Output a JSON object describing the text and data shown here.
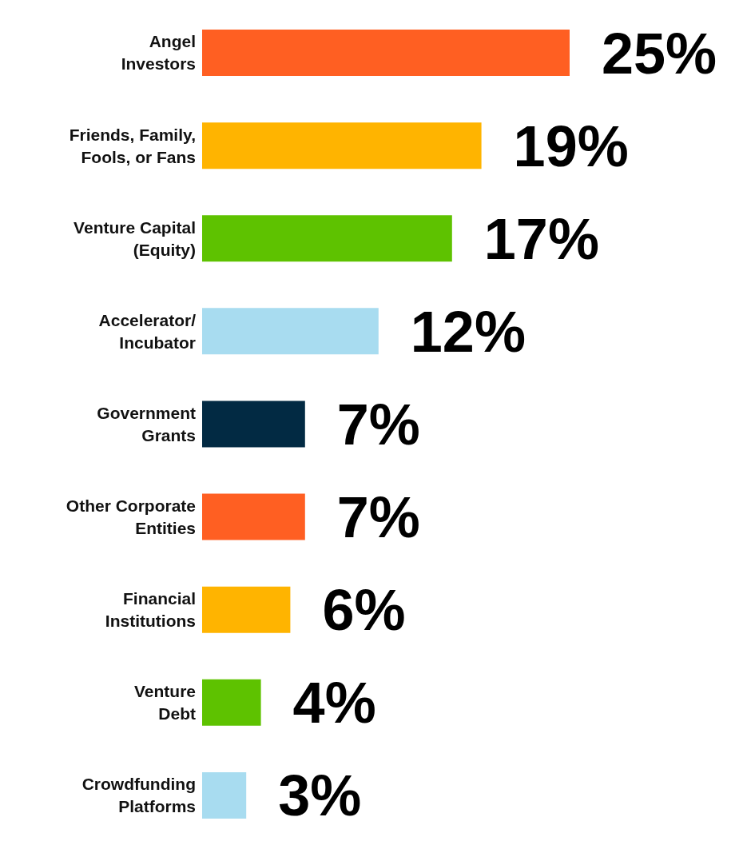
{
  "chart_data": {
    "type": "bar",
    "orientation": "horizontal",
    "tick_labels": "y",
    "categories": [
      "Angel Investors",
      "Friends, Family, Fools, or Fans",
      "Venture Capital (Equity)",
      "Accelerator/ Incubator",
      "Government Grants",
      "Other Corporate Entities",
      "Financial Institutions",
      "Venture Debt",
      "Crowdfunding Platforms"
    ],
    "values": [
      25,
      19,
      17,
      12,
      7,
      7,
      6,
      4,
      3
    ],
    "colors": [
      "#ff5f22",
      "#ffb400",
      "#5ec200",
      "#a8dcf0",
      "#022a43",
      "#ff5f22",
      "#ffb400",
      "#5ec200",
      "#a8dcf0"
    ],
    "value_labels": [
      "25%",
      "19%",
      "17%",
      "12%",
      "7%",
      "7%",
      "6%",
      "4%",
      "3%"
    ]
  }
}
